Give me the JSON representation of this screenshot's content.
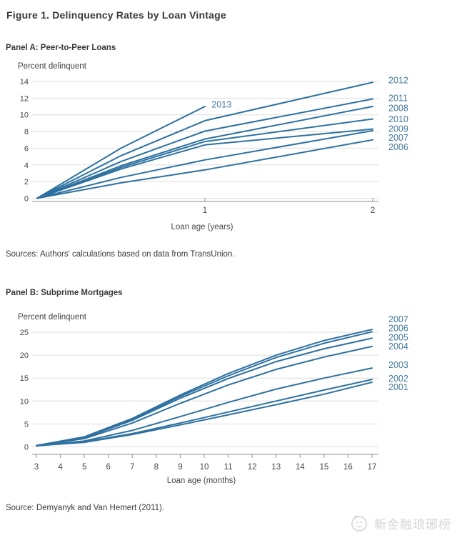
{
  "title": "Figure 1. Delinquency Rates by Loan Vintage",
  "colors": {
    "line": "#2e71a0",
    "series_label": "#44799f",
    "grid": "#dedede",
    "axis": "#8f8f8f",
    "tick_text": "#474747",
    "text": "#3a3a3a",
    "watermark": "#d5d5d5"
  },
  "chart_data": [
    {
      "id": "panel_a",
      "type": "line",
      "title": "Panel A: Peer-to-Peer Loans",
      "ylabel": "Percent delinquent",
      "xlabel": "Loan age (years)",
      "source": "Sources: Authors' calculations based on data from TransUnion.",
      "xlim": [
        0,
        2
      ],
      "ylim": [
        0,
        14
      ],
      "yticks": [
        0,
        2,
        4,
        6,
        8,
        10,
        12,
        14
      ],
      "xticks": [
        1,
        2
      ],
      "grid": true,
      "legend_position": "right-end-labels",
      "series": [
        {
          "name": "2013",
          "x": [
            0,
            0.5,
            1
          ],
          "y": [
            0,
            6.0,
            11.0
          ],
          "label_x": 1.04,
          "label_y": 11.26
        },
        {
          "name": "2012",
          "x": [
            0,
            0.5,
            1,
            2
          ],
          "y": [
            0,
            5.1,
            9.3,
            13.9
          ],
          "label_y": 14.15
        },
        {
          "name": "2011",
          "x": [
            0,
            0.5,
            1,
            2
          ],
          "y": [
            0,
            4.4,
            8.05,
            11.9
          ],
          "label_y": 12.05
        },
        {
          "name": "2008",
          "x": [
            0,
            0.5,
            1,
            2
          ],
          "y": [
            0,
            3.9,
            7.1,
            11.0
          ],
          "label_y": 10.85
        },
        {
          "name": "2010",
          "x": [
            0,
            0.5,
            1,
            2
          ],
          "y": [
            0,
            3.7,
            6.8,
            9.5
          ],
          "label_y": 9.5
        },
        {
          "name": "2009",
          "x": [
            0,
            0.5,
            1,
            2
          ],
          "y": [
            0,
            3.5,
            6.4,
            8.3
          ],
          "label_y": 8.35
        },
        {
          "name": "2007",
          "x": [
            0,
            0.5,
            1,
            2
          ],
          "y": [
            0,
            2.5,
            4.6,
            8.1
          ],
          "label_y": 7.28
        },
        {
          "name": "2006",
          "x": [
            0,
            0.5,
            1,
            2
          ],
          "y": [
            0,
            1.85,
            3.4,
            7.0
          ],
          "label_y": 6.17
        }
      ]
    },
    {
      "id": "panel_b",
      "type": "line",
      "title": "Panel B: Subprime Mortgages",
      "ylabel": "Percent delinquent",
      "xlabel": "Loan age (months)",
      "source": "Source: Demyanyk and Van Hemert (2011).",
      "xlim": [
        3,
        17
      ],
      "ylim": [
        0,
        25
      ],
      "yticks": [
        0,
        5,
        10,
        15,
        20,
        25
      ],
      "xticks": [
        3,
        4,
        5,
        6,
        7,
        8,
        9,
        10,
        11,
        12,
        13,
        14,
        15,
        16,
        17
      ],
      "grid": true,
      "legend_position": "right-end-labels",
      "series": [
        {
          "name": "2007",
          "x": [
            3,
            5,
            7,
            9,
            11,
            13,
            15,
            17
          ],
          "y": [
            0.3,
            2.2,
            6.2,
            11.3,
            16.0,
            20.0,
            23.2,
            25.6
          ],
          "label_y": 27.9
        },
        {
          "name": "2006",
          "x": [
            3,
            5,
            7,
            9,
            11,
            13,
            15,
            17
          ],
          "y": [
            0.3,
            2.1,
            6.0,
            11.0,
            15.5,
            19.5,
            22.6,
            25.1
          ],
          "label_y": 25.9
        },
        {
          "name": "2005",
          "x": [
            3,
            5,
            7,
            9,
            11,
            13,
            15,
            17
          ],
          "y": [
            0.3,
            2.0,
            5.8,
            10.6,
            14.9,
            18.6,
            21.4,
            23.7
          ],
          "label_y": 23.9
        },
        {
          "name": "2004",
          "x": [
            3,
            5,
            7,
            9,
            11,
            13,
            15,
            17
          ],
          "y": [
            0.3,
            1.8,
            5.2,
            9.5,
            13.5,
            16.9,
            19.6,
            21.9
          ],
          "label_y": 22.0
        },
        {
          "name": "2003",
          "x": [
            3,
            5,
            7,
            9,
            11,
            13,
            15,
            17
          ],
          "y": [
            0.3,
            1.3,
            3.6,
            6.6,
            9.7,
            12.6,
            15.0,
            17.2
          ],
          "label_y": 17.9
        },
        {
          "name": "2002",
          "x": [
            3,
            5,
            7,
            9,
            11,
            13,
            15,
            17
          ],
          "y": [
            0.25,
            1.1,
            2.9,
            5.2,
            7.6,
            10.0,
            12.4,
            14.7
          ],
          "label_y": 14.95
        },
        {
          "name": "2001",
          "x": [
            3,
            5,
            7,
            9,
            11,
            13,
            15,
            17
          ],
          "y": [
            0.25,
            1.0,
            2.7,
            4.8,
            7.0,
            9.2,
            11.5,
            14.1
          ],
          "label_y": 13.1
        }
      ]
    }
  ],
  "watermark": {
    "text": "新金融琅琊榜"
  }
}
